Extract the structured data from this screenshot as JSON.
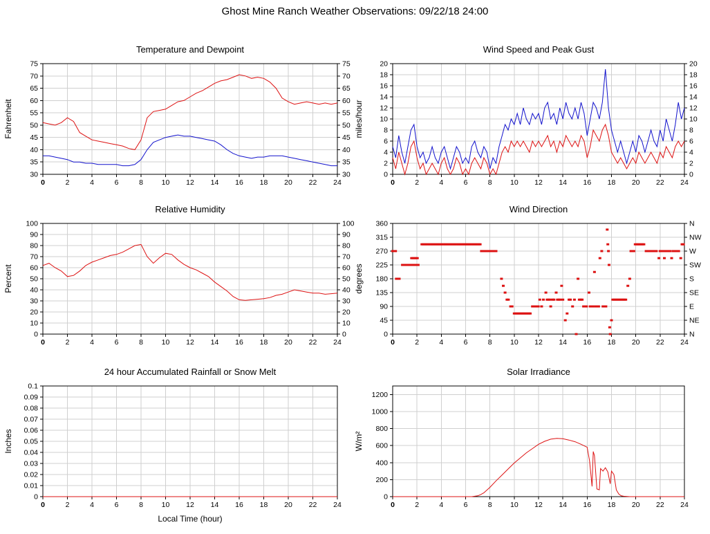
{
  "title": "Ghost Mine Ranch Weather Observations: 09/22/18 24:00",
  "chart_data": [
    {
      "id": "temperature-dewpoint",
      "type": "line",
      "title": "Temperature and Dewpoint",
      "ylabel": "Fahrenheit",
      "xlim": [
        0,
        24
      ],
      "ylim": [
        30,
        75
      ],
      "xticks": [
        0,
        2,
        4,
        6,
        8,
        10,
        12,
        14,
        16,
        18,
        20,
        22,
        24
      ],
      "yticks": [
        30,
        35,
        40,
        45,
        50,
        55,
        60,
        65,
        70,
        75
      ],
      "right_labels": [
        "30",
        "35",
        "40",
        "45",
        "50",
        "55",
        "60",
        "65",
        "70",
        "75"
      ],
      "grid": true,
      "legend": "none",
      "series": [
        {
          "name": "temperature",
          "color": "#dd1111",
          "x_start": 0,
          "x_step": 0.5,
          "y": [
            51,
            50.5,
            50,
            51,
            53,
            51.5,
            47,
            45.5,
            44,
            43.5,
            43,
            42.5,
            42,
            41.5,
            40.5,
            40,
            44,
            53,
            55.5,
            56,
            56.5,
            58,
            59.5,
            60,
            61.5,
            63,
            64,
            65.5,
            67,
            68,
            68.5,
            69.5,
            70.5,
            70,
            69,
            69.5,
            69,
            67.5,
            65,
            61,
            59.5,
            58.5,
            59,
            59.5,
            59,
            58.5,
            59,
            58.5,
            59
          ]
        },
        {
          "name": "dewpoint",
          "color": "#1111cc",
          "x_start": 0,
          "x_step": 0.5,
          "y": [
            37.5,
            37.5,
            37,
            36.5,
            36,
            35,
            35,
            34.5,
            34.5,
            34,
            34,
            34,
            34,
            33.5,
            33.5,
            34,
            36,
            40,
            43,
            44,
            45,
            45.5,
            46,
            45.5,
            45.5,
            45,
            44.5,
            44,
            43.5,
            42,
            40,
            38.5,
            37.5,
            37,
            36.5,
            37,
            37,
            37.5,
            37.5,
            37.5,
            37,
            36.5,
            36,
            35.5,
            35,
            34.5,
            34,
            33.5,
            33.5
          ]
        }
      ]
    },
    {
      "id": "wind-speed-peak-gust",
      "type": "line",
      "title": "Wind Speed and Peak Gust",
      "ylabel": "miles/hour",
      "xlim": [
        0,
        24
      ],
      "ylim": [
        0,
        20
      ],
      "xticks": [
        0,
        2,
        4,
        6,
        8,
        10,
        12,
        14,
        16,
        18,
        20,
        22,
        24
      ],
      "yticks": [
        0,
        2,
        4,
        6,
        8,
        10,
        12,
        14,
        16,
        18,
        20
      ],
      "right_labels": [
        "0",
        "2",
        "4",
        "6",
        "8",
        "10",
        "12",
        "14",
        "16",
        "18",
        "20"
      ],
      "grid": true,
      "legend": "none",
      "series": [
        {
          "name": "peak-gust",
          "color": "#1111cc",
          "x_start": 0,
          "x_step": 0.25,
          "y": [
            5,
            3,
            7,
            4,
            2,
            5,
            8,
            9,
            5,
            3,
            4,
            2,
            3,
            5,
            3,
            2,
            4,
            5,
            3,
            1,
            3,
            5,
            4,
            2,
            3,
            2,
            5,
            6,
            4,
            3,
            5,
            4,
            1,
            3,
            2,
            5,
            7,
            9,
            8,
            10,
            9,
            11,
            9,
            12,
            10,
            9,
            11,
            10,
            11,
            9,
            12,
            13,
            10,
            11,
            9,
            12,
            10,
            13,
            11,
            10,
            12,
            10,
            13,
            11,
            7,
            10,
            13,
            12,
            10,
            13,
            19,
            12,
            8,
            6,
            4,
            6,
            4,
            2,
            4,
            6,
            4,
            7,
            6,
            4,
            6,
            8,
            6,
            5,
            8,
            6,
            10,
            8,
            6,
            9,
            13,
            10,
            12
          ]
        },
        {
          "name": "wind-speed",
          "color": "#dd1111",
          "x_start": 0,
          "x_step": 0.25,
          "y": [
            3,
            1,
            4,
            2,
            0,
            2,
            5,
            6,
            3,
            1,
            2,
            0,
            1,
            2,
            1,
            0,
            2,
            3,
            1,
            0,
            1,
            3,
            2,
            0,
            1,
            0,
            2,
            3,
            2,
            1,
            3,
            2,
            0,
            1,
            0,
            2,
            4,
            5,
            4,
            6,
            5,
            6,
            5,
            6,
            5,
            4,
            6,
            5,
            6,
            5,
            6,
            7,
            5,
            6,
            4,
            6,
            5,
            7,
            6,
            5,
            6,
            5,
            7,
            6,
            3,
            5,
            8,
            7,
            6,
            8,
            9,
            7,
            4,
            3,
            2,
            3,
            2,
            1,
            2,
            3,
            2,
            4,
            3,
            2,
            3,
            4,
            3,
            2,
            4,
            3,
            5,
            4,
            3,
            5,
            6,
            5,
            6
          ]
        }
      ]
    },
    {
      "id": "relative-humidity",
      "type": "line",
      "title": "Relative Humidity",
      "ylabel": "Percent",
      "xlim": [
        0,
        24
      ],
      "ylim": [
        0,
        100
      ],
      "xticks": [
        0,
        2,
        4,
        6,
        8,
        10,
        12,
        14,
        16,
        18,
        20,
        22,
        24
      ],
      "yticks": [
        0,
        10,
        20,
        30,
        40,
        50,
        60,
        70,
        80,
        90,
        100
      ],
      "right_labels": [
        "0",
        "10",
        "20",
        "30",
        "40",
        "50",
        "60",
        "70",
        "80",
        "90",
        "100"
      ],
      "grid": true,
      "legend": "none",
      "series": [
        {
          "name": "relative-humidity",
          "color": "#dd1111",
          "x_start": 0,
          "x_step": 0.5,
          "y": [
            62,
            64,
            60,
            57,
            52,
            53,
            57,
            62,
            65,
            67,
            69,
            71,
            72,
            74,
            77,
            80,
            81,
            70,
            64,
            69,
            73,
            72,
            67,
            63,
            60,
            58,
            55,
            52,
            47,
            43,
            39,
            34,
            31,
            30.5,
            31,
            31.5,
            32,
            33,
            35,
            36,
            38,
            40,
            39,
            38,
            37,
            37,
            36,
            36.5,
            37
          ]
        }
      ]
    },
    {
      "id": "wind-direction",
      "type": "scatter",
      "title": "Wind Direction",
      "ylabel": "degrees",
      "xlim": [
        0,
        24
      ],
      "ylim": [
        0,
        360
      ],
      "xticks": [
        0,
        2,
        4,
        6,
        8,
        10,
        12,
        14,
        16,
        18,
        20,
        22,
        24
      ],
      "yticks": [
        0,
        45,
        90,
        135,
        180,
        225,
        270,
        315,
        360
      ],
      "right_labels": [
        "N",
        "NE",
        "E",
        "SE",
        "S",
        "SW",
        "W",
        "NW",
        "N"
      ],
      "grid": true,
      "legend": "none",
      "series": [
        {
          "name": "wind-direction",
          "color": "#dd1111",
          "segments": [
            [
              0,
              0.35,
              270
            ],
            [
              0.3,
              0.65,
              180
            ],
            [
              0.8,
              1.45,
              225
            ],
            [
              1.5,
              2.2,
              225
            ],
            [
              1.55,
              2.1,
              247
            ],
            [
              2.4,
              7.2,
              292
            ],
            [
              7.3,
              8.6,
              270
            ],
            [
              8.95,
              8.95,
              180
            ],
            [
              9.1,
              9.1,
              157
            ],
            [
              9.25,
              9.25,
              135
            ],
            [
              9.4,
              9.6,
              112
            ],
            [
              9.7,
              9.9,
              90
            ],
            [
              10,
              11.4,
              67
            ],
            [
              11.5,
              12,
              90
            ],
            [
              12.1,
              12.1,
              112
            ],
            [
              12.25,
              12.25,
              90
            ],
            [
              12.4,
              12.5,
              112
            ],
            [
              12.6,
              12.6,
              135
            ],
            [
              12.7,
              12.95,
              112
            ],
            [
              13,
              13.1,
              90
            ],
            [
              13.15,
              13.35,
              112
            ],
            [
              13.45,
              13.45,
              135
            ],
            [
              13.55,
              13.8,
              112
            ],
            [
              13.9,
              13.9,
              157
            ],
            [
              14,
              14.1,
              112
            ],
            [
              14.2,
              14.2,
              45
            ],
            [
              14.35,
              14.35,
              67
            ],
            [
              14.5,
              14.7,
              112
            ],
            [
              14.8,
              14.8,
              90
            ],
            [
              14.95,
              14.95,
              112
            ],
            [
              15.1,
              15.1,
              0
            ],
            [
              15.25,
              15.25,
              180
            ],
            [
              15.35,
              15.6,
              112
            ],
            [
              15.7,
              16.05,
              90
            ],
            [
              16.15,
              16.15,
              135
            ],
            [
              16.25,
              16.55,
              90
            ],
            [
              16.6,
              16.6,
              202
            ],
            [
              16.7,
              16.95,
              90
            ],
            [
              17.05,
              17.05,
              247
            ],
            [
              17.2,
              17.2,
              270
            ],
            [
              17.3,
              17.55,
              90
            ],
            [
              17.65,
              17.65,
              340
            ],
            [
              17.7,
              17.7,
              292
            ],
            [
              17.75,
              17.75,
              270
            ],
            [
              17.8,
              17.8,
              225
            ],
            [
              17.85,
              17.85,
              22
            ],
            [
              17.9,
              17.95,
              0
            ],
            [
              18,
              18.05,
              45
            ],
            [
              18.1,
              19.25,
              112
            ],
            [
              19.35,
              19.35,
              157
            ],
            [
              19.5,
              19.5,
              180
            ],
            [
              19.6,
              19.85,
              270
            ],
            [
              19.95,
              20.75,
              292
            ],
            [
              20.85,
              21.8,
              270
            ],
            [
              21.9,
              21.9,
              247
            ],
            [
              22,
              22.25,
              270
            ],
            [
              22.35,
              22.35,
              247
            ],
            [
              22.45,
              22.85,
              270
            ],
            [
              22.95,
              22.95,
              247
            ],
            [
              23.05,
              23.6,
              270
            ],
            [
              23.7,
              23.7,
              247
            ],
            [
              23.8,
              23.95,
              292
            ]
          ]
        }
      ]
    },
    {
      "id": "accumulated-rainfall",
      "type": "line",
      "title": "24 hour Accumulated Rainfall or Snow Melt",
      "ylabel": "Inches",
      "xlabel": "Local Time (hour)",
      "xlim": [
        0,
        24
      ],
      "ylim": [
        0,
        0.1
      ],
      "xticks": [
        0,
        2,
        4,
        6,
        8,
        10,
        12,
        14,
        16,
        18,
        20,
        22,
        24
      ],
      "yticks": [
        0,
        0.01,
        0.02,
        0.03,
        0.04,
        0.05,
        0.06,
        0.07,
        0.08,
        0.09,
        0.1
      ],
      "ytick_labels": [
        "0",
        "0.01",
        "0.02",
        "0.03",
        "0.04",
        "0.05",
        "0.06",
        "0.07",
        "0.08",
        "0.09",
        "0.1"
      ],
      "grid": true,
      "legend": "none",
      "series": [
        {
          "name": "rainfall",
          "color": "#dd1111",
          "x": [
            0,
            24
          ],
          "y": [
            0,
            0
          ]
        }
      ]
    },
    {
      "id": "solar-irradiance",
      "type": "line",
      "title": "Solar Irradiance",
      "ylabel": "W/m²",
      "xlim": [
        0,
        24
      ],
      "ylim": [
        0,
        1300
      ],
      "xticks": [
        0,
        2,
        4,
        6,
        8,
        10,
        12,
        14,
        16,
        18,
        20,
        22,
        24
      ],
      "yticks": [
        0,
        200,
        400,
        600,
        800,
        1000,
        1200
      ],
      "grid": true,
      "legend": "none",
      "series": [
        {
          "name": "solar-irradiance",
          "color": "#dd1111",
          "x": [
            0,
            1,
            2,
            3,
            4,
            5,
            6,
            6.5,
            7,
            7.25,
            7.5,
            8,
            8.5,
            9,
            9.5,
            10,
            10.5,
            11,
            11.5,
            12,
            12.5,
            13,
            13.5,
            14,
            14.5,
            15,
            15.5,
            16,
            16.2,
            16.4,
            16.5,
            16.6,
            16.8,
            17,
            17.1,
            17.3,
            17.5,
            17.7,
            17.9,
            18,
            18.2,
            18.4,
            18.6,
            18.8,
            19,
            19.5,
            20,
            21,
            22,
            23,
            24
          ],
          "y": [
            0,
            0,
            0,
            0,
            0,
            0,
            0,
            0,
            10,
            25,
            45,
            110,
            185,
            255,
            325,
            395,
            455,
            515,
            565,
            615,
            650,
            675,
            685,
            680,
            665,
            645,
            615,
            580,
            420,
            120,
            530,
            480,
            90,
            80,
            330,
            300,
            340,
            290,
            150,
            300,
            260,
            80,
            30,
            10,
            5,
            0,
            0,
            0,
            0,
            0,
            0
          ]
        }
      ]
    }
  ]
}
